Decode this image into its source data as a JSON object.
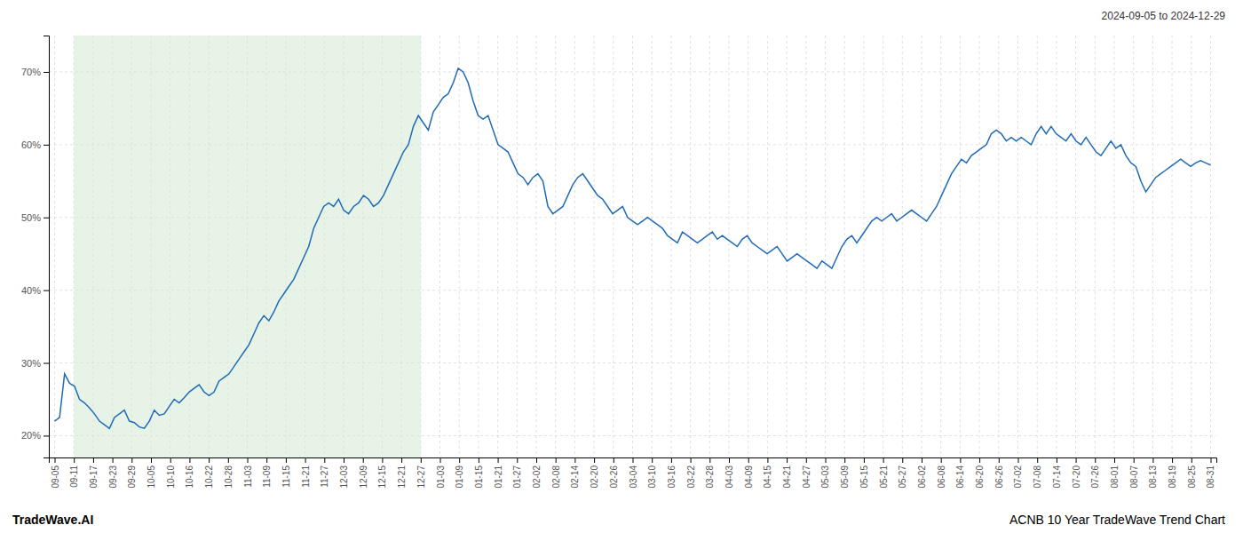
{
  "chart_data": {
    "type": "line",
    "title": "ACNB 10 Year TradeWave Trend Chart",
    "subtitle": "2024-09-05 to 2024-12-29",
    "annotations": [
      "TradeWave.AI"
    ],
    "color": "#1f6bb5",
    "grid": true,
    "xlim": [
      -0.3,
      60.3
    ],
    "xticks": [
      {
        "value": 0,
        "label": "09-05"
      },
      {
        "value": 1,
        "label": "09-11"
      },
      {
        "value": 2,
        "label": "09-17"
      },
      {
        "value": 3,
        "label": "09-23"
      },
      {
        "value": 4,
        "label": "09-29"
      },
      {
        "value": 5,
        "label": "10-05"
      },
      {
        "value": 6,
        "label": "10-10"
      },
      {
        "value": 7,
        "label": "10-16"
      },
      {
        "value": 8,
        "label": "10-22"
      },
      {
        "value": 9,
        "label": "10-28"
      },
      {
        "value": 10,
        "label": "11-03"
      },
      {
        "value": 11,
        "label": "11-09"
      },
      {
        "value": 12,
        "label": "11-15"
      },
      {
        "value": 13,
        "label": "11-21"
      },
      {
        "value": 14,
        "label": "11-27"
      },
      {
        "value": 15,
        "label": "12-03"
      },
      {
        "value": 16,
        "label": "12-09"
      },
      {
        "value": 17,
        "label": "12-15"
      },
      {
        "value": 18,
        "label": "12-21"
      },
      {
        "value": 19,
        "label": "12-27"
      },
      {
        "value": 20,
        "label": "01-03"
      },
      {
        "value": 21,
        "label": "01-09"
      },
      {
        "value": 22,
        "label": "01-15"
      },
      {
        "value": 23,
        "label": "01-21"
      },
      {
        "value": 24,
        "label": "01-27"
      },
      {
        "value": 25,
        "label": "02-02"
      },
      {
        "value": 26,
        "label": "02-08"
      },
      {
        "value": 27,
        "label": "02-14"
      },
      {
        "value": 28,
        "label": "02-20"
      },
      {
        "value": 29,
        "label": "02-26"
      },
      {
        "value": 30,
        "label": "03-04"
      },
      {
        "value": 31,
        "label": "03-10"
      },
      {
        "value": 32,
        "label": "03-16"
      },
      {
        "value": 33,
        "label": "03-22"
      },
      {
        "value": 34,
        "label": "03-28"
      },
      {
        "value": 35,
        "label": "04-03"
      },
      {
        "value": 36,
        "label": "04-09"
      },
      {
        "value": 37,
        "label": "04-15"
      },
      {
        "value": 38,
        "label": "04-21"
      },
      {
        "value": 39,
        "label": "04-27"
      },
      {
        "value": 40,
        "label": "05-03"
      },
      {
        "value": 41,
        "label": "05-09"
      },
      {
        "value": 42,
        "label": "05-15"
      },
      {
        "value": 43,
        "label": "05-21"
      },
      {
        "value": 44,
        "label": "05-27"
      },
      {
        "value": 45,
        "label": "06-02"
      },
      {
        "value": 46,
        "label": "06-08"
      },
      {
        "value": 47,
        "label": "06-14"
      },
      {
        "value": 48,
        "label": "06-20"
      },
      {
        "value": 49,
        "label": "06-26"
      },
      {
        "value": 50,
        "label": "07-02"
      },
      {
        "value": 51,
        "label": "07-08"
      },
      {
        "value": 52,
        "label": "07-14"
      },
      {
        "value": 53,
        "label": "07-20"
      },
      {
        "value": 54,
        "label": "07-26"
      },
      {
        "value": 55,
        "label": "08-01"
      },
      {
        "value": 56,
        "label": "08-07"
      },
      {
        "value": 57,
        "label": "08-13"
      },
      {
        "value": 58,
        "label": "08-19"
      },
      {
        "value": 59,
        "label": "08-25"
      },
      {
        "value": 60,
        "label": "08-31"
      }
    ],
    "ylim": [
      17,
      75
    ],
    "yticks": [
      {
        "value": 20,
        "label": "20%"
      },
      {
        "value": 30,
        "label": "30%"
      },
      {
        "value": 40,
        "label": "40%"
      },
      {
        "value": 50,
        "label": "50%"
      },
      {
        "value": 60,
        "label": "60%"
      },
      {
        "value": 70,
        "label": "70%"
      }
    ],
    "shaded_region": {
      "x": [
        1,
        19
      ],
      "color": "#d4e9d4"
    },
    "values": [
      22.0,
      22.5,
      28.5,
      27.2,
      26.8,
      25.0,
      24.5,
      23.8,
      23.0,
      22.0,
      21.5,
      21.0,
      22.5,
      23.0,
      23.5,
      22.0,
      21.8,
      21.2,
      21.0,
      22.0,
      23.5,
      22.8,
      23.0,
      24.0,
      25.0,
      24.5,
      25.2,
      26.0,
      26.5,
      27.0,
      26.0,
      25.5,
      26.0,
      27.5,
      28.0,
      28.5,
      29.5,
      30.5,
      31.5,
      32.5,
      34.0,
      35.5,
      36.5,
      35.8,
      37.0,
      38.5,
      39.5,
      40.5,
      41.5,
      43.0,
      44.5,
      46.0,
      48.5,
      50.0,
      51.5,
      52.0,
      51.5,
      52.5,
      51.0,
      50.5,
      51.5,
      52.0,
      53.0,
      52.5,
      51.5,
      52.0,
      53.0,
      54.5,
      56.0,
      57.5,
      59.0,
      60.0,
      62.5,
      64.0,
      63.0,
      62.0,
      64.5,
      65.5,
      66.5,
      67.0,
      68.5,
      70.5,
      70.0,
      68.5,
      66.0,
      64.0,
      63.5,
      64.0,
      62.0,
      60.0,
      59.5,
      59.0,
      57.5,
      56.0,
      55.5,
      54.5,
      55.5,
      56.0,
      55.0,
      51.5,
      50.5,
      51.0,
      51.5,
      53.0,
      54.5,
      55.5,
      56.0,
      55.0,
      54.0,
      53.0,
      52.5,
      51.5,
      50.5,
      51.0,
      51.5,
      50.0,
      49.5,
      49.0,
      49.5,
      50.0,
      49.5,
      49.0,
      48.5,
      47.5,
      47.0,
      46.5,
      48.0,
      47.5,
      47.0,
      46.5,
      47.0,
      47.5,
      48.0,
      47.0,
      47.5,
      47.0,
      46.5,
      46.0,
      47.0,
      47.5,
      46.5,
      46.0,
      45.5,
      45.0,
      45.5,
      46.0,
      45.0,
      44.0,
      44.5,
      45.0,
      44.5,
      44.0,
      43.5,
      43.0,
      44.0,
      43.5,
      43.0,
      44.5,
      46.0,
      47.0,
      47.5,
      46.5,
      47.5,
      48.5,
      49.5,
      50.0,
      49.5,
      50.0,
      50.5,
      49.5,
      50.0,
      50.5,
      51.0,
      50.5,
      50.0,
      49.5,
      50.5,
      51.5,
      53.0,
      54.5,
      56.0,
      57.0,
      58.0,
      57.5,
      58.5,
      59.0,
      59.5,
      60.0,
      61.5,
      62.0,
      61.5,
      60.5,
      61.0,
      60.5,
      61.0,
      60.5,
      60.0,
      61.5,
      62.5,
      61.5,
      62.5,
      61.5,
      61.0,
      60.5,
      61.5,
      60.5,
      60.0,
      61.0,
      60.0,
      59.0,
      58.5,
      59.5,
      60.5,
      59.5,
      60.0,
      58.5,
      57.5,
      57.0,
      55.0,
      53.5,
      54.5,
      55.5,
      56.0,
      56.5,
      57.0,
      57.5,
      58.0,
      57.5,
      57.0,
      57.5,
      57.8,
      57.5,
      57.2
    ]
  }
}
